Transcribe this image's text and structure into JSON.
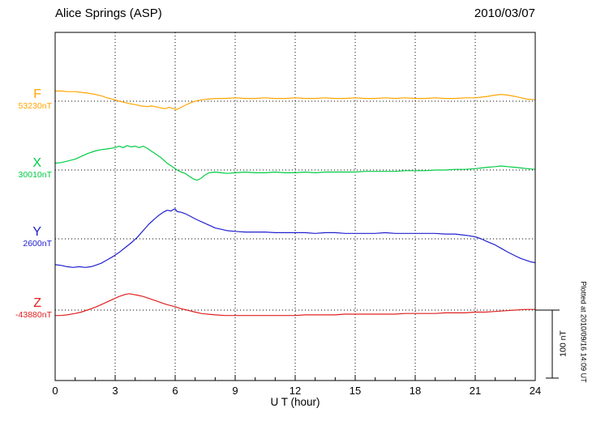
{
  "header": {
    "title": "Alice Springs (ASP)",
    "date": "2010/03/07"
  },
  "axis": {
    "x_label": "U T (hour)",
    "x_min": 0,
    "x_max": 24,
    "x_ticks": [
      0,
      3,
      6,
      9,
      12,
      15,
      18,
      21,
      24
    ]
  },
  "scale_bar": {
    "label": "100 nT",
    "nT": 100
  },
  "footnote": "Plotted at 2010/09/16 14:09 UT",
  "chart_data": {
    "type": "line",
    "title": "Alice Springs (ASP) magnetogram 2010/03/07",
    "xlabel": "U T (hour)",
    "x_range": [
      0,
      24
    ],
    "grid": "dotted",
    "scale_nT_per_bar": 100,
    "series": [
      {
        "name": "F",
        "baseline_label": "53230nT",
        "color": "#FFA500",
        "points": [
          [
            0,
            15
          ],
          [
            0.3,
            15
          ],
          [
            0.6,
            14
          ],
          [
            1,
            14
          ],
          [
            1.3,
            13
          ],
          [
            1.6,
            12
          ],
          [
            2,
            10
          ],
          [
            2.3,
            8
          ],
          [
            2.6,
            5
          ],
          [
            3,
            2
          ],
          [
            3.2,
            0
          ],
          [
            3.5,
            -2
          ],
          [
            3.8,
            -4
          ],
          [
            4,
            -5
          ],
          [
            4.3,
            -7
          ],
          [
            4.6,
            -8
          ],
          [
            4.8,
            -7
          ],
          [
            5,
            -8
          ],
          [
            5.3,
            -10
          ],
          [
            5.5,
            -11
          ],
          [
            5.7,
            -9
          ],
          [
            5.9,
            -11
          ],
          [
            6.1,
            -12
          ],
          [
            6.3,
            -9
          ],
          [
            6.5,
            -6
          ],
          [
            6.8,
            -2
          ],
          [
            7,
            0
          ],
          [
            7.3,
            2
          ],
          [
            7.6,
            3
          ],
          [
            8,
            4
          ],
          [
            8.5,
            4
          ],
          [
            9,
            5
          ],
          [
            9.5,
            4
          ],
          [
            10,
            4
          ],
          [
            10.5,
            5
          ],
          [
            11,
            4
          ],
          [
            11.5,
            4
          ],
          [
            12,
            5
          ],
          [
            12.5,
            4
          ],
          [
            13,
            4
          ],
          [
            13.5,
            5
          ],
          [
            14,
            4
          ],
          [
            14.5,
            4
          ],
          [
            15,
            5
          ],
          [
            15.5,
            4
          ],
          [
            16,
            4
          ],
          [
            16.5,
            5
          ],
          [
            17,
            4
          ],
          [
            17.5,
            5
          ],
          [
            18,
            4
          ],
          [
            18.5,
            4
          ],
          [
            19,
            5
          ],
          [
            19.5,
            4
          ],
          [
            20,
            4
          ],
          [
            20.5,
            5
          ],
          [
            21,
            5
          ],
          [
            21.3,
            6
          ],
          [
            21.6,
            7
          ],
          [
            22,
            9
          ],
          [
            22.3,
            10
          ],
          [
            22.6,
            9
          ],
          [
            23,
            7
          ],
          [
            23.3,
            5
          ],
          [
            23.6,
            3
          ],
          [
            24,
            2
          ]
        ]
      },
      {
        "name": "X",
        "baseline_label": "30010nT",
        "color": "#00CC44",
        "points": [
          [
            0,
            10
          ],
          [
            0.3,
            11
          ],
          [
            0.6,
            13
          ],
          [
            1,
            16
          ],
          [
            1.3,
            20
          ],
          [
            1.6,
            24
          ],
          [
            2,
            28
          ],
          [
            2.3,
            30
          ],
          [
            2.6,
            31
          ],
          [
            3,
            33
          ],
          [
            3.2,
            35
          ],
          [
            3.4,
            33
          ],
          [
            3.6,
            36
          ],
          [
            3.8,
            34
          ],
          [
            4,
            35
          ],
          [
            4.2,
            33
          ],
          [
            4.4,
            35
          ],
          [
            4.6,
            32
          ],
          [
            4.8,
            28
          ],
          [
            5,
            24
          ],
          [
            5.3,
            18
          ],
          [
            5.6,
            10
          ],
          [
            5.9,
            4
          ],
          [
            6.1,
            0
          ],
          [
            6.3,
            -3
          ],
          [
            6.5,
            -5
          ],
          [
            6.7,
            -9
          ],
          [
            6.9,
            -13
          ],
          [
            7.1,
            -15
          ],
          [
            7.3,
            -12
          ],
          [
            7.5,
            -7
          ],
          [
            7.7,
            -4
          ],
          [
            8,
            -3
          ],
          [
            8.3,
            -4
          ],
          [
            8.6,
            -5
          ],
          [
            9,
            -4
          ],
          [
            9.5,
            -3
          ],
          [
            10,
            -4
          ],
          [
            10.5,
            -4
          ],
          [
            11,
            -3
          ],
          [
            11.5,
            -4
          ],
          [
            12,
            -4
          ],
          [
            12.5,
            -3
          ],
          [
            13,
            -4
          ],
          [
            13.5,
            -3
          ],
          [
            14,
            -3
          ],
          [
            14.5,
            -3
          ],
          [
            15,
            -3
          ],
          [
            15.5,
            -2
          ],
          [
            16,
            -2
          ],
          [
            16.5,
            -2
          ],
          [
            17,
            -2
          ],
          [
            17.5,
            -1
          ],
          [
            18,
            -1
          ],
          [
            18.5,
            -1
          ],
          [
            19,
            0
          ],
          [
            19.5,
            0
          ],
          [
            20,
            1
          ],
          [
            20.5,
            1
          ],
          [
            21,
            2
          ],
          [
            21.3,
            3
          ],
          [
            21.6,
            4
          ],
          [
            22,
            5
          ],
          [
            22.3,
            6
          ],
          [
            22.6,
            5
          ],
          [
            23,
            4
          ],
          [
            23.3,
            3
          ],
          [
            23.6,
            2
          ],
          [
            24,
            1
          ]
        ]
      },
      {
        "name": "Y",
        "baseline_label": "2600nT",
        "color": "#2020D0",
        "points": [
          [
            0,
            -38
          ],
          [
            0.3,
            -39
          ],
          [
            0.6,
            -41
          ],
          [
            0.9,
            -42
          ],
          [
            1.2,
            -41
          ],
          [
            1.5,
            -42
          ],
          [
            1.8,
            -41
          ],
          [
            2,
            -39
          ],
          [
            2.3,
            -36
          ],
          [
            2.6,
            -31
          ],
          [
            2.9,
            -26
          ],
          [
            3.2,
            -20
          ],
          [
            3.5,
            -13
          ],
          [
            3.8,
            -6
          ],
          [
            4.1,
            2
          ],
          [
            4.4,
            12
          ],
          [
            4.7,
            22
          ],
          [
            5,
            30
          ],
          [
            5.2,
            35
          ],
          [
            5.4,
            39
          ],
          [
            5.6,
            42
          ],
          [
            5.8,
            41
          ],
          [
            5.9,
            43
          ],
          [
            6,
            44
          ],
          [
            6.1,
            40
          ],
          [
            6.3,
            39
          ],
          [
            6.5,
            37
          ],
          [
            6.7,
            34
          ],
          [
            6.9,
            31
          ],
          [
            7.1,
            28
          ],
          [
            7.4,
            24
          ],
          [
            7.7,
            20
          ],
          [
            8,
            16
          ],
          [
            8.3,
            14
          ],
          [
            8.6,
            12
          ],
          [
            9,
            11
          ],
          [
            9.5,
            10
          ],
          [
            10,
            10
          ],
          [
            10.5,
            10
          ],
          [
            11,
            9
          ],
          [
            11.5,
            9
          ],
          [
            12,
            9
          ],
          [
            12.5,
            9
          ],
          [
            13,
            8
          ],
          [
            13.5,
            9
          ],
          [
            14,
            9
          ],
          [
            14.5,
            8
          ],
          [
            15,
            8
          ],
          [
            15.5,
            8
          ],
          [
            16,
            8
          ],
          [
            16.5,
            9
          ],
          [
            17,
            8
          ],
          [
            17.5,
            8
          ],
          [
            18,
            8
          ],
          [
            18.5,
            8
          ],
          [
            19,
            8
          ],
          [
            19.5,
            7
          ],
          [
            20,
            7
          ],
          [
            20.3,
            6
          ],
          [
            20.6,
            5
          ],
          [
            21,
            3
          ],
          [
            21.3,
            0
          ],
          [
            21.6,
            -4
          ],
          [
            22,
            -9
          ],
          [
            22.3,
            -14
          ],
          [
            22.6,
            -19
          ],
          [
            23,
            -25
          ],
          [
            23.3,
            -29
          ],
          [
            23.6,
            -32
          ],
          [
            23.8,
            -34
          ],
          [
            24,
            -35
          ]
        ]
      },
      {
        "name": "Z",
        "baseline_label": "-43880nT",
        "color": "#E02020",
        "points": [
          [
            0,
            -8
          ],
          [
            0.3,
            -8
          ],
          [
            0.6,
            -7
          ],
          [
            1,
            -5
          ],
          [
            1.3,
            -3
          ],
          [
            1.6,
            0
          ],
          [
            2,
            4
          ],
          [
            2.3,
            8
          ],
          [
            2.6,
            12
          ],
          [
            2.9,
            16
          ],
          [
            3.2,
            20
          ],
          [
            3.5,
            23
          ],
          [
            3.7,
            24
          ],
          [
            3.9,
            23
          ],
          [
            4.1,
            22
          ],
          [
            4.4,
            20
          ],
          [
            4.7,
            17
          ],
          [
            5,
            14
          ],
          [
            5.3,
            11
          ],
          [
            5.6,
            8
          ],
          [
            6,
            5
          ],
          [
            6.3,
            2
          ],
          [
            6.6,
            0
          ],
          [
            7,
            -3
          ],
          [
            7.3,
            -5
          ],
          [
            7.6,
            -6
          ],
          [
            8,
            -7
          ],
          [
            8.5,
            -8
          ],
          [
            9,
            -8
          ],
          [
            9.5,
            -8
          ],
          [
            10,
            -8
          ],
          [
            10.5,
            -8
          ],
          [
            11,
            -8
          ],
          [
            11.5,
            -8
          ],
          [
            12,
            -8
          ],
          [
            12.5,
            -7
          ],
          [
            13,
            -7
          ],
          [
            13.5,
            -7
          ],
          [
            14,
            -7
          ],
          [
            14.5,
            -6
          ],
          [
            15,
            -6
          ],
          [
            15.5,
            -6
          ],
          [
            16,
            -6
          ],
          [
            16.5,
            -6
          ],
          [
            17,
            -6
          ],
          [
            17.5,
            -5
          ],
          [
            18,
            -5
          ],
          [
            18.5,
            -5
          ],
          [
            19,
            -5
          ],
          [
            19.5,
            -4
          ],
          [
            20,
            -4
          ],
          [
            20.5,
            -4
          ],
          [
            21,
            -3
          ],
          [
            21.5,
            -3
          ],
          [
            22,
            -2
          ],
          [
            22.5,
            -1
          ],
          [
            23,
            0
          ],
          [
            23.5,
            1
          ],
          [
            24,
            1
          ]
        ]
      }
    ]
  }
}
